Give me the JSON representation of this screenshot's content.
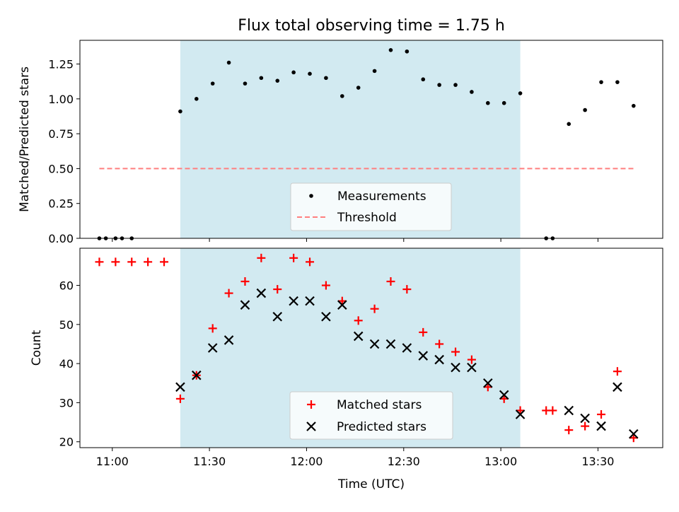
{
  "title": "Flux total observing time = 1.75 h",
  "colors": {
    "background": "#ffffff",
    "span": "#add8e6",
    "measurements": "#000000",
    "threshold": "#ff7f7f",
    "matched": "#ff0000",
    "predicted": "#000000"
  },
  "chart_data": [
    {
      "type": "scatter",
      "title": "Flux total observing time = 1.75 h",
      "ylabel": "Matched/Predicted stars",
      "xlabel": "",
      "ylim": [
        0,
        1.42
      ],
      "xlim": [
        "10:50",
        "13:50"
      ],
      "yticks": [
        "0.00",
        "0.25",
        "0.50",
        "0.75",
        "1.00",
        "1.25"
      ],
      "observing_span": [
        "11:21",
        "13:06"
      ],
      "legend_position": "lower center",
      "grid": false,
      "series": [
        {
          "name": "Measurements",
          "x": [
            "10:56",
            "10:58",
            "11:01",
            "11:03",
            "11:06",
            "11:21",
            "11:26",
            "11:31",
            "11:36",
            "11:41",
            "11:46",
            "11:51",
            "11:56",
            "12:01",
            "12:06",
            "12:11",
            "12:16",
            "12:21",
            "12:26",
            "12:31",
            "12:36",
            "12:41",
            "12:46",
            "12:51",
            "12:56",
            "13:01",
            "13:06",
            "13:14",
            "13:16",
            "13:21",
            "13:26",
            "13:31",
            "13:36",
            "13:41"
          ],
          "y": [
            0,
            0,
            0,
            0,
            0,
            0.91,
            1.0,
            1.11,
            1.26,
            1.11,
            1.15,
            1.13,
            1.19,
            1.18,
            1.15,
            1.02,
            1.08,
            1.2,
            1.35,
            1.34,
            1.14,
            1.1,
            1.1,
            1.05,
            0.97,
            0.97,
            1.04,
            0,
            0,
            0.82,
            0.92,
            1.12,
            1.12,
            0.95
          ]
        },
        {
          "name": "Threshold",
          "x": [
            "10:56",
            "13:41"
          ],
          "y": [
            0.5,
            0.5
          ]
        }
      ]
    },
    {
      "type": "scatter",
      "title": "",
      "ylabel": "Count",
      "xlabel": "Time (UTC)",
      "ylim": [
        18.5,
        69.5
      ],
      "xlim": [
        "10:50",
        "13:50"
      ],
      "yticks": [
        "20",
        "30",
        "40",
        "50",
        "60"
      ],
      "xticks": [
        "11:00",
        "11:30",
        "12:00",
        "12:30",
        "13:00",
        "13:30"
      ],
      "observing_span": [
        "11:21",
        "13:06"
      ],
      "legend_position": "lower center",
      "grid": false,
      "series": [
        {
          "name": "Matched stars",
          "x": [
            "10:56",
            "11:01",
            "11:06",
            "11:11",
            "11:16",
            "11:21",
            "11:26",
            "11:31",
            "11:36",
            "11:41",
            "11:46",
            "11:51",
            "11:56",
            "12:01",
            "12:06",
            "12:11",
            "12:16",
            "12:21",
            "12:26",
            "12:31",
            "12:36",
            "12:41",
            "12:46",
            "12:51",
            "12:56",
            "13:01",
            "13:06",
            "13:14",
            "13:16",
            "13:21",
            "13:26",
            "13:31",
            "13:36",
            "13:41"
          ],
          "y": [
            66,
            66,
            66,
            66,
            66,
            31,
            37,
            49,
            58,
            61,
            67,
            59,
            67,
            66,
            60,
            56,
            51,
            54,
            61,
            59,
            48,
            45,
            43,
            41,
            34,
            31,
            28,
            28,
            28,
            23,
            24,
            27,
            38,
            21
          ]
        },
        {
          "name": "Predicted stars",
          "x": [
            "11:21",
            "11:26",
            "11:31",
            "11:36",
            "11:41",
            "11:46",
            "11:51",
            "11:56",
            "12:01",
            "12:06",
            "12:11",
            "12:16",
            "12:21",
            "12:26",
            "12:31",
            "12:36",
            "12:41",
            "12:46",
            "12:51",
            "12:56",
            "13:01",
            "13:06",
            "13:21",
            "13:26",
            "13:31",
            "13:36",
            "13:41"
          ],
          "y": [
            34,
            37,
            44,
            46,
            55,
            58,
            52,
            56,
            56,
            52,
            55,
            47,
            45,
            45,
            44,
            42,
            41,
            39,
            39,
            35,
            32,
            27,
            28,
            26,
            24,
            34,
            22
          ]
        }
      ]
    }
  ]
}
